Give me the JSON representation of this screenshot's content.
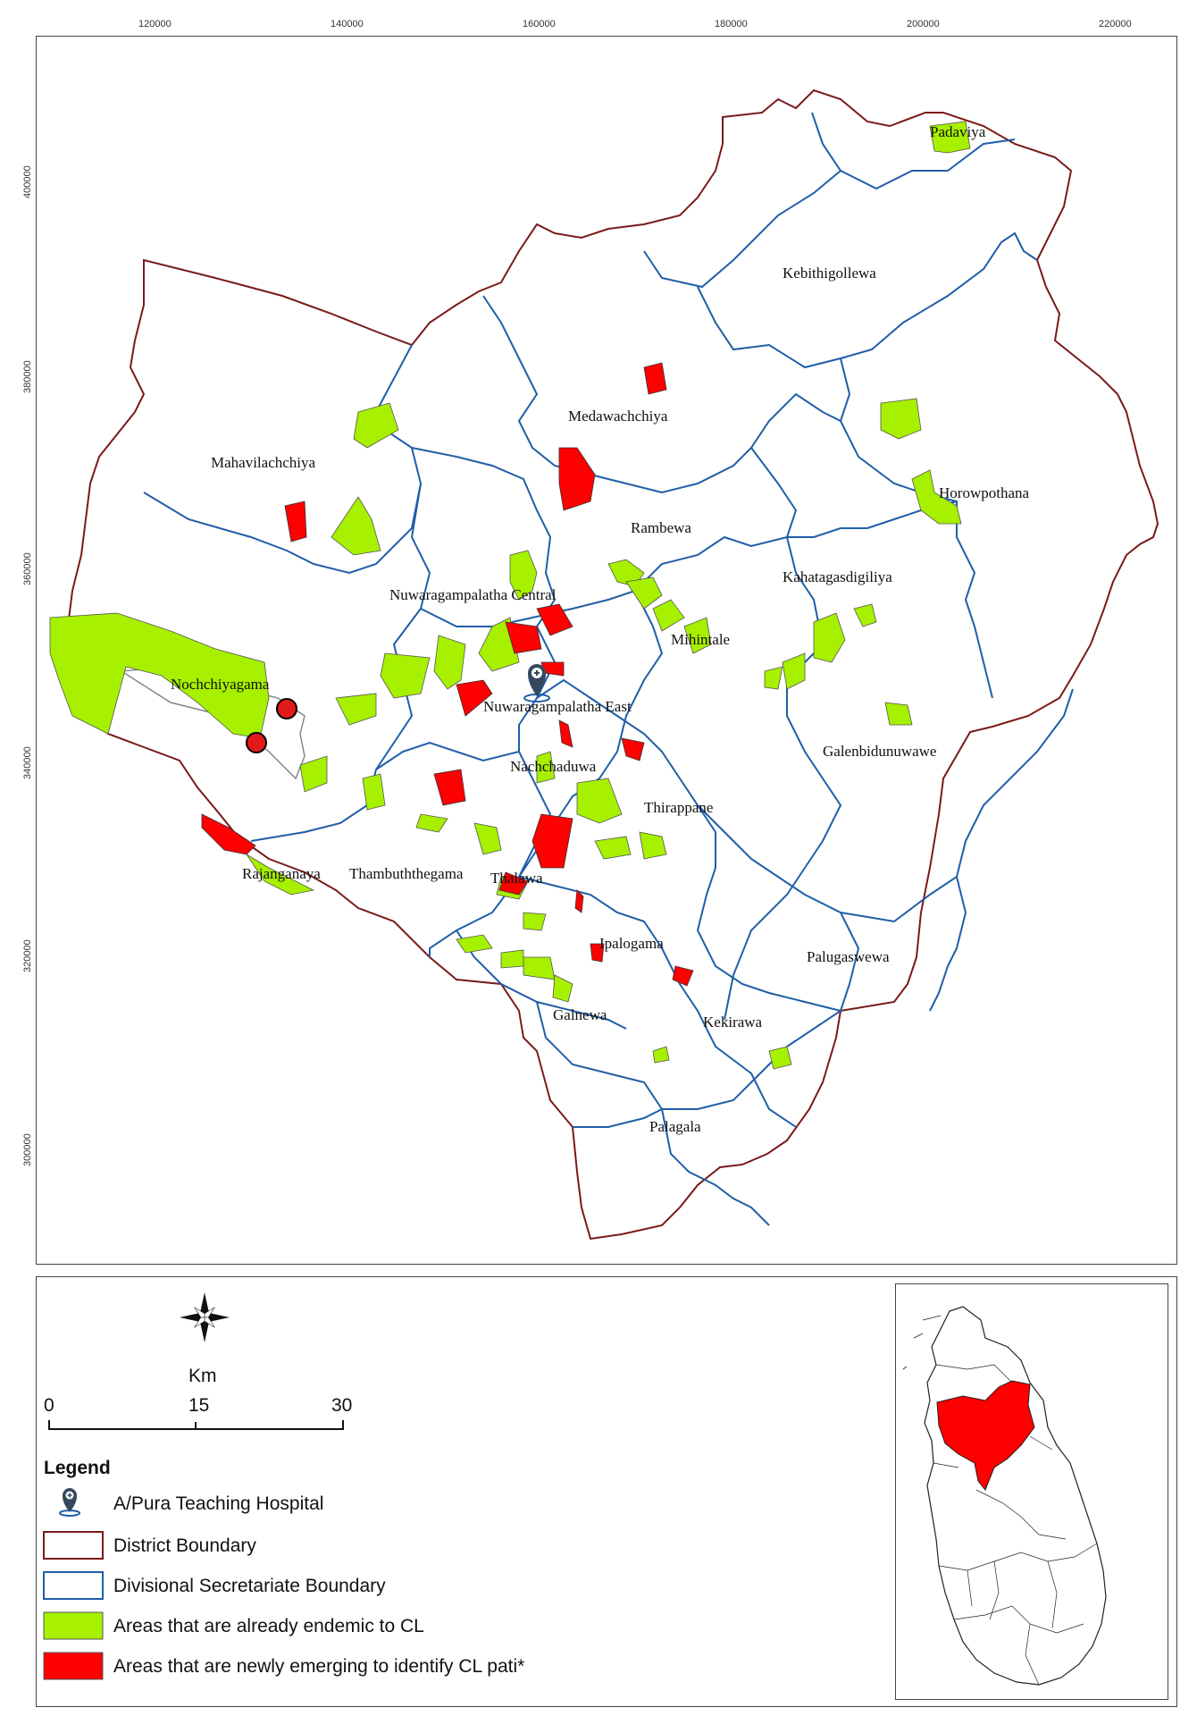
{
  "map": {
    "x_ticks": [
      "120000",
      "140000",
      "160000",
      "180000",
      "200000",
      "220000"
    ],
    "y_ticks": [
      "400000",
      "380000",
      "360000",
      "340000",
      "320000",
      "300000"
    ],
    "labels": {
      "padaviya": "Padaviya",
      "kebithigollewa": "Kebithigollewa",
      "medawachchiya": "Medawachchiya",
      "mahavilachchiya": "Mahavilachchiya",
      "horowpothana": "Horowpothana",
      "rambewa": "Rambewa",
      "kahatagasdigiliya": "Kahatagasdigiliya",
      "nuwaragampalatha_central": "Nuwaragampalatha Central",
      "nochchiyagama": "Nochchiyagama",
      "mihintale": "Mihintale",
      "nuwaragampalatha_east": "Nuwaragampalatha East",
      "galenbidunuwawe": "Galenbidunuwawe",
      "nachchaduwa": "Nachchaduwa",
      "thirappane": "Thirappane",
      "rajanganaya": "Rajanganaya",
      "thambuththegama": "Thambuththegama",
      "thalawa": "Thalawa",
      "ipalogama": "Ipalogama",
      "palugaswewa": "Palugaswewa",
      "galnewa": "Galnewa",
      "kekirawa": "Kekirawa",
      "palagala": "Palagala"
    }
  },
  "scale": {
    "unit": "Km",
    "ticks": [
      "0",
      "15",
      "30"
    ]
  },
  "legend": {
    "title": "Legend",
    "items": [
      {
        "label": "A/Pura Teaching Hospital",
        "symbol": "hospital-marker-icon"
      },
      {
        "label": "District Boundary",
        "color": "#7a1a1a"
      },
      {
        "label": "Divisional Secretariate Boundary",
        "color": "#1f5ea8"
      },
      {
        "label": "Areas that are already endemic to CL",
        "color": "#a6f000"
      },
      {
        "label": "Areas that are newly emerging to identify CL pati*",
        "color": "#ff0000"
      }
    ]
  },
  "colors": {
    "district": "#7a1a1a",
    "divisional": "#1f5ea8",
    "endemic": "#a6f000",
    "emerging": "#ff0000"
  }
}
